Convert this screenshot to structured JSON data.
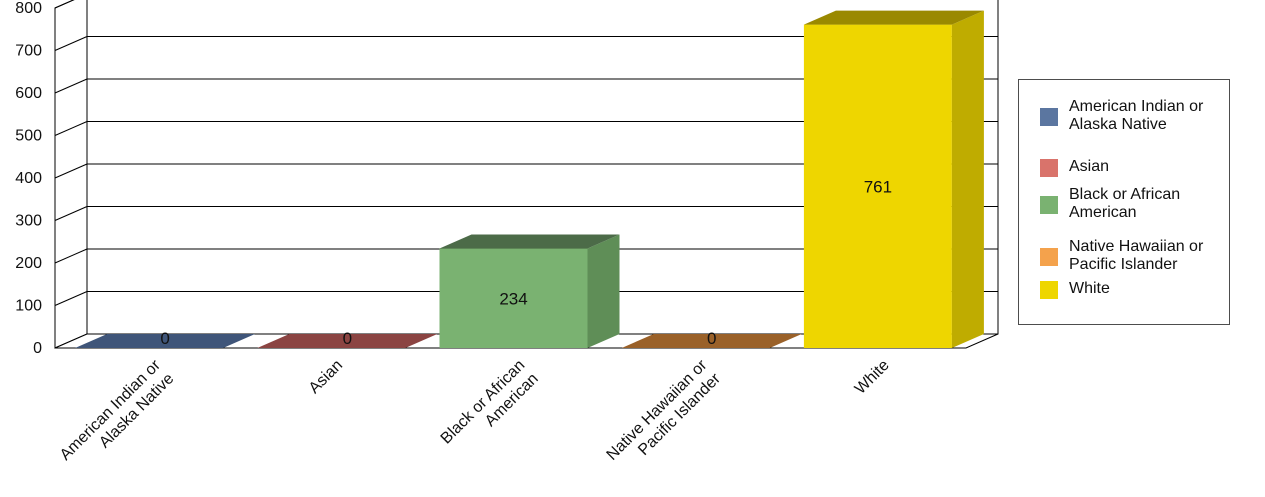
{
  "chart_data": {
    "type": "bar",
    "categories": [
      "American Indian or\nAlaska Native",
      "Asian",
      "Black or African\nAmerican",
      "Native Hawaiian or\nPacific Islander",
      "White"
    ],
    "values": [
      0,
      0,
      234,
      0,
      761
    ],
    "data_labels": [
      "0",
      "0",
      "234",
      "0",
      "761"
    ],
    "ylim": [
      0,
      800
    ],
    "yticks": [
      "0",
      "100",
      "200",
      "300",
      "400",
      "500",
      "600",
      "700",
      "800"
    ],
    "grid": true,
    "legend_position": "right",
    "colors": {
      "front": [
        "#5b76a0",
        "#d9736b",
        "#7ab271",
        "#f4a24c",
        "#eed600"
      ],
      "side": [
        "#3e5475",
        "#a0544f",
        "#5f8e57",
        "#b3773a",
        "#bfac00"
      ],
      "top": [
        "#3f5579",
        "#8b4442",
        "#4c6b48",
        "#9a6129",
        "#9a8900"
      ]
    }
  },
  "legend": {
    "items": [
      {
        "label": "American Indian or\nAlaska Native",
        "color": "#5b76a0"
      },
      {
        "label": "Asian",
        "color": "#d9736b"
      },
      {
        "label": "Black or African\nAmerican",
        "color": "#7ab271"
      },
      {
        "label": "Native Hawaiian or\nPacific Islander",
        "color": "#f4a24c"
      },
      {
        "label": "White",
        "color": "#eed600"
      }
    ]
  }
}
